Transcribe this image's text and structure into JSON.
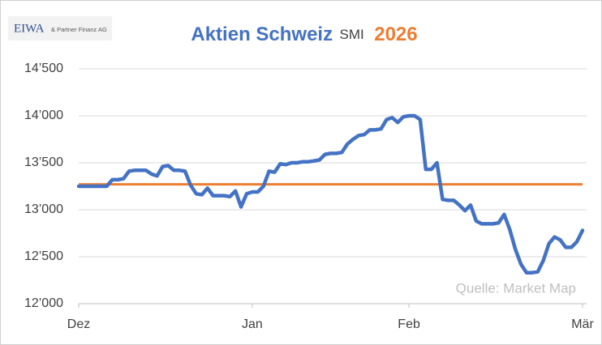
{
  "chart_data": {
    "type": "line",
    "logo": "EIWA",
    "logo_subtitle": "& Partner Finanz AG",
    "title": "Aktien Schweiz",
    "title_index": "SMI",
    "title_year": "2026",
    "source": "Quelle: Market Map",
    "categories": [
      "Dez",
      null,
      null,
      null,
      null,
      null,
      null,
      null,
      null,
      null,
      null,
      null,
      null,
      null,
      null,
      null,
      null,
      null,
      null,
      null,
      null,
      null,
      null,
      null,
      null,
      null,
      null,
      null,
      null,
      null,
      null,
      "Jan",
      null,
      null,
      null,
      null,
      null,
      null,
      null,
      null,
      null,
      null,
      null,
      null,
      null,
      null,
      null,
      null,
      null,
      null,
      null,
      null,
      null,
      null,
      null,
      null,
      null,
      null,
      null,
      "Feb",
      null,
      null,
      null,
      null,
      null,
      null,
      null,
      null,
      null,
      null,
      null,
      null,
      null,
      null,
      null,
      null,
      null,
      null,
      null,
      null,
      null,
      null,
      null,
      null,
      null,
      null,
      null,
      null,
      null,
      null,
      "Mär"
    ],
    "series": [
      {
        "color": "#4472c4",
        "values": [
          13250,
          13250,
          13250,
          13250,
          13250,
          13250,
          13320,
          13320,
          13330,
          13410,
          13420,
          13420,
          13420,
          13380,
          13360,
          13460,
          13470,
          13420,
          13420,
          13410,
          13260,
          13170,
          13160,
          13230,
          13150,
          13150,
          13150,
          13140,
          13200,
          13030,
          13170,
          13190,
          13190,
          13250,
          13410,
          13400,
          13490,
          13480,
          13500,
          13500,
          13510,
          13510,
          13520,
          13530,
          13590,
          13600,
          13600,
          13610,
          13700,
          13750,
          13790,
          13800,
          13850,
          13850,
          13860,
          13960,
          13980,
          13930,
          13990,
          14000,
          14000,
          13960,
          13430,
          13430,
          13500,
          13110,
          13100,
          13100,
          13050,
          12990,
          13050,
          12880,
          12850,
          12850,
          12850,
          12860,
          12950,
          12790,
          12580,
          12420,
          12330,
          12330,
          12340,
          12460,
          12640,
          12710,
          12680,
          12600,
          12600,
          12660,
          12780
        ]
      }
    ],
    "reference_line": {
      "value": 13270,
      "color": "#ed7d31"
    },
    "ylim": [
      12000,
      14500
    ],
    "yticks": [
      {
        "value": 12000,
        "label": "12’000"
      },
      {
        "value": 12500,
        "label": "12’500"
      },
      {
        "value": 13000,
        "label": "13’000"
      },
      {
        "value": 13500,
        "label": "13’500"
      },
      {
        "value": 14000,
        "label": "14’000"
      },
      {
        "value": 14500,
        "label": "14’500"
      }
    ],
    "grid": true
  }
}
